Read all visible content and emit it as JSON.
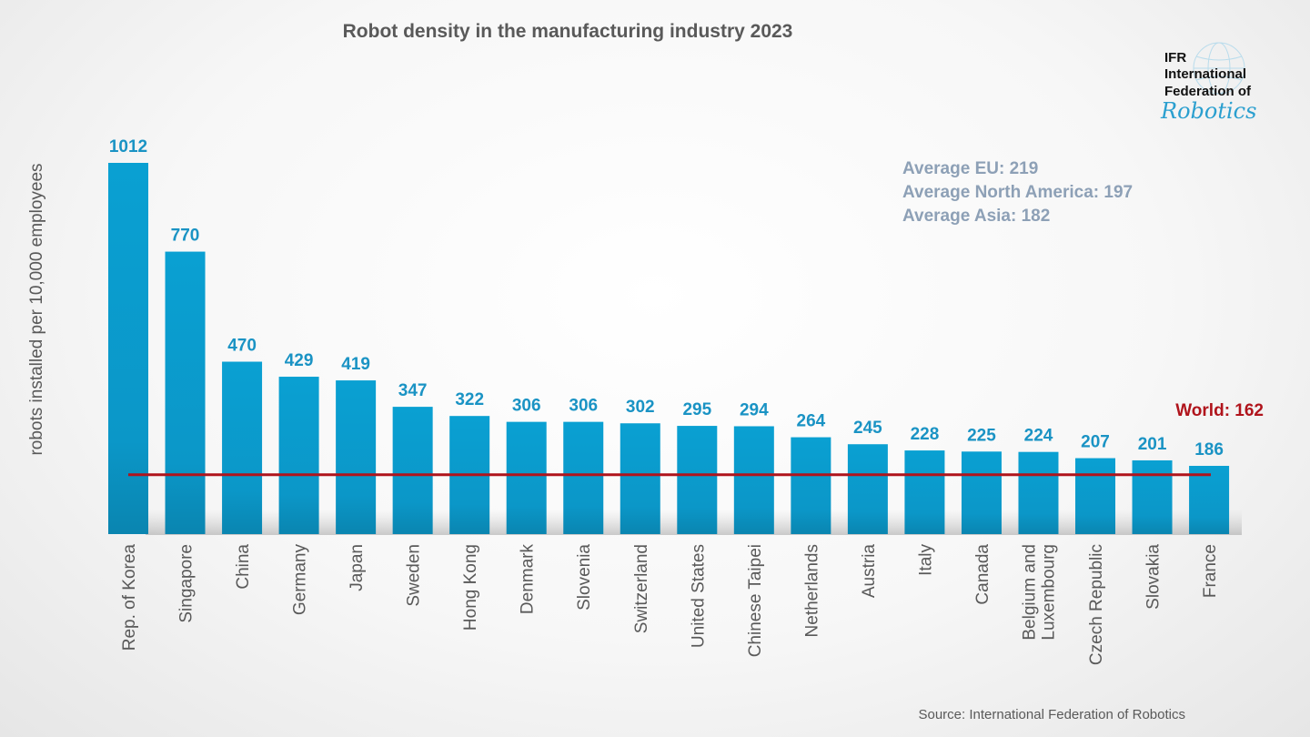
{
  "chart_data": {
    "type": "bar",
    "title": "Robot density in the manufacturing industry 2023",
    "ylabel": "robots installed per 10,000 employees",
    "xlabel": "",
    "categories": [
      "Rep. of Korea",
      "Singapore",
      "China",
      "Germany",
      "Japan",
      "Sweden",
      "Hong Kong",
      "Denmark",
      "Slovenia",
      "Switzerland",
      "United States",
      "Chinese Taipei",
      "Netherlands",
      "Austria",
      "Italy",
      "Canada",
      "Belgium and Luxembourg",
      "Czech Republic",
      "Slovakia",
      "France"
    ],
    "values": [
      1012,
      770,
      470,
      429,
      419,
      347,
      322,
      306,
      306,
      302,
      295,
      294,
      264,
      245,
      228,
      225,
      224,
      207,
      201,
      186
    ],
    "reference_line": {
      "label": "World: 162",
      "value": 162,
      "color": "#b0141c"
    },
    "annotations": [
      "Average EU: 219",
      "Average North America: 197",
      "Average Asia: 182"
    ],
    "source": "Source: International Federation of Robotics",
    "bar_color": "#0a9acb",
    "grid": false,
    "ylim": [
      0,
      1012
    ]
  },
  "logo": {
    "line1": "IFR",
    "line2": "International",
    "line3": "Federation of",
    "line4": "Robotics"
  }
}
